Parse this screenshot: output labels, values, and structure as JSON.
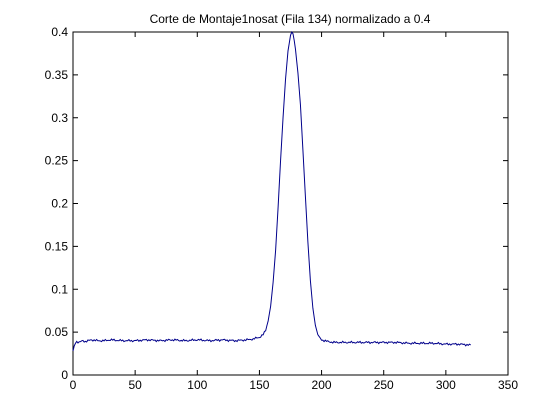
{
  "chart_data": {
    "type": "line",
    "title": "Corte de Montaje1nosat (Fila 134) normalizado a 0.4",
    "xlabel": "",
    "ylabel": "",
    "xlim": [
      0,
      350
    ],
    "ylim": [
      0,
      0.4
    ],
    "xticks": [
      0,
      50,
      100,
      150,
      200,
      250,
      300,
      350
    ],
    "yticks": [
      0,
      0.05,
      0.1,
      0.15,
      0.2,
      0.25,
      0.3,
      0.35,
      0.4
    ],
    "xtick_labels": [
      "0",
      "50",
      "100",
      "150",
      "200",
      "250",
      "300",
      "350"
    ],
    "ytick_labels": [
      "0",
      "0.05",
      "0.1",
      "0.15",
      "0.2",
      "0.25",
      "0.3",
      "0.35",
      "0.4"
    ],
    "grid": false,
    "legend": "none",
    "series": [
      {
        "color": "#00008b",
        "x": [
          0,
          1,
          2,
          3,
          5,
          8,
          10,
          15,
          20,
          25,
          30,
          40,
          50,
          60,
          70,
          80,
          90,
          100,
          110,
          120,
          130,
          140,
          145,
          150,
          153,
          155,
          157,
          159,
          161,
          163,
          165,
          167,
          169,
          171,
          173,
          175,
          176,
          177,
          178,
          179,
          181,
          183,
          185,
          187,
          189,
          191,
          193,
          195,
          197,
          200,
          205,
          210,
          220,
          230,
          240,
          250,
          260,
          270,
          280,
          290,
          300,
          310,
          320
        ],
        "y": [
          0.028,
          0.034,
          0.037,
          0.039,
          0.038,
          0.04,
          0.039,
          0.041,
          0.04,
          0.04,
          0.041,
          0.04,
          0.04,
          0.041,
          0.04,
          0.041,
          0.04,
          0.041,
          0.04,
          0.041,
          0.04,
          0.041,
          0.042,
          0.044,
          0.047,
          0.052,
          0.063,
          0.08,
          0.108,
          0.145,
          0.195,
          0.25,
          0.3,
          0.345,
          0.378,
          0.396,
          0.4,
          0.398,
          0.39,
          0.38,
          0.352,
          0.315,
          0.262,
          0.208,
          0.155,
          0.11,
          0.078,
          0.058,
          0.047,
          0.041,
          0.039,
          0.038,
          0.038,
          0.038,
          0.038,
          0.038,
          0.038,
          0.037,
          0.037,
          0.037,
          0.036,
          0.036,
          0.035
        ]
      }
    ]
  }
}
